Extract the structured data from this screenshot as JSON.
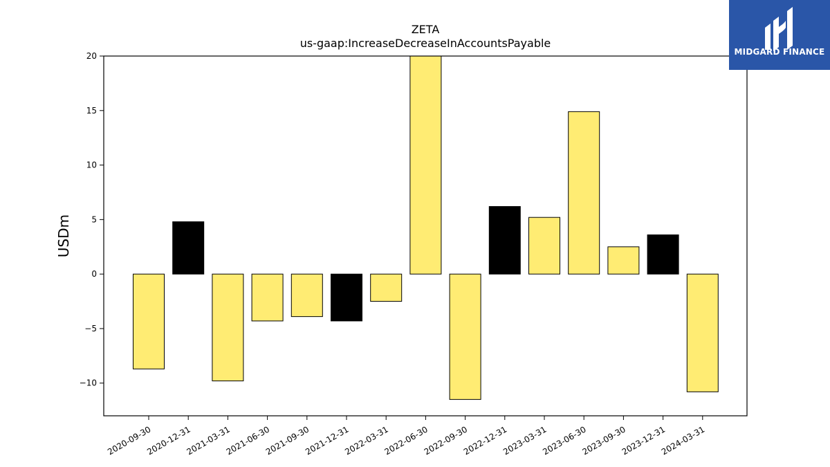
{
  "chart_data": {
    "type": "bar",
    "title": "ZETA",
    "subtitle": "us-gaap:IncreaseDecreaseInAccountsPayable",
    "xlabel": "",
    "ylabel": "USDm",
    "ylim": [
      -13,
      20
    ],
    "yticks": [
      -10,
      -5,
      0,
      5,
      10,
      15,
      20
    ],
    "ytick_labels": [
      "−10",
      "−5",
      "0",
      "5",
      "10",
      "15",
      "20"
    ],
    "grid": false,
    "categories": [
      "2020-09-30",
      "2020-12-31",
      "2021-03-31",
      "2021-06-30",
      "2021-09-30",
      "2021-12-31",
      "2022-03-31",
      "2022-06-30",
      "2022-09-30",
      "2022-12-31",
      "2023-03-31",
      "2023-06-30",
      "2023-09-30",
      "2023-12-31",
      "2024-03-31"
    ],
    "values": [
      -8.7,
      4.8,
      -9.8,
      -4.3,
      -3.9,
      -4.3,
      -2.5,
      20.0,
      -11.5,
      6.2,
      5.2,
      14.9,
      2.5,
      3.6,
      -10.8
    ],
    "colors": [
      "#ffec73",
      "#000000",
      "#ffec73",
      "#ffec73",
      "#ffec73",
      "#000000",
      "#ffec73",
      "#ffec73",
      "#ffec73",
      "#000000",
      "#ffec73",
      "#ffec73",
      "#ffec73",
      "#000000",
      "#ffec73"
    ]
  },
  "logo": {
    "text": "MIDGARD FINANCE",
    "background": "#2a56a8"
  }
}
